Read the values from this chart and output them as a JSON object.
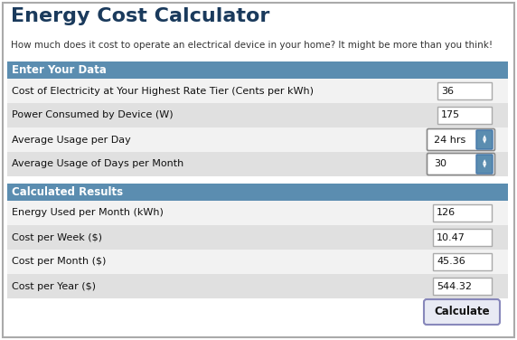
{
  "title": "Energy Cost Calculator",
  "subtitle": "How much does it cost to operate an electrical device in your home? It might be more than you think!",
  "section1_header": "Enter Your Data",
  "section2_header": "Calculated Results",
  "input_rows": [
    {
      "label": "Cost of Electricity at Your Highest Rate Tier (Cents per kWh)",
      "value": "36",
      "type": "text"
    },
    {
      "label": "Power Consumed by Device (W)",
      "value": "175",
      "type": "text"
    },
    {
      "label": "Average Usage per Day",
      "value": "24 hrs",
      "type": "spinner"
    },
    {
      "label": "Average Usage of Days per Month",
      "value": "30",
      "type": "spinner"
    }
  ],
  "result_rows": [
    {
      "label": "Energy Used per Month (kWh)",
      "value": "126"
    },
    {
      "label": "Cost per Week ($)",
      "value": "10.47"
    },
    {
      "label": "Cost per Month ($)",
      "value": "45.36"
    },
    {
      "label": "Cost per Year ($)",
      "value": "544.32"
    }
  ],
  "button_label": "Calculate",
  "header_color": "#5b8db0",
  "header_text_color": "#ffffff",
  "title_color": "#1a3a5c",
  "row_colors_input": [
    "#f2f2f2",
    "#e0e0e0"
  ],
  "row_colors_result": [
    "#f2f2f2",
    "#e0e0e0"
  ],
  "border_color": "#aaaaaa",
  "bg_color": "#ffffff",
  "outer_border_color": "#aaaaaa",
  "spinner_bg": "#5b8db0",
  "spinner_border": "#4477aa",
  "calc_btn_bg": "#e8eaf4",
  "calc_btn_border": "#8888bb"
}
